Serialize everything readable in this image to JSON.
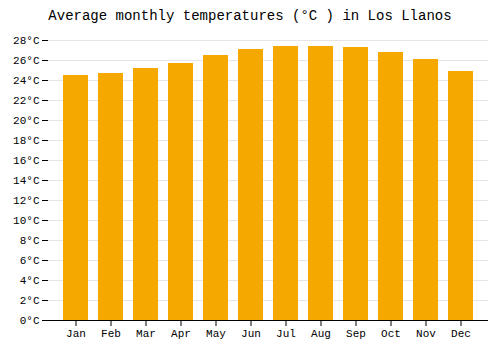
{
  "chart_data": {
    "type": "bar",
    "title": "Average monthly temperatures (°C ) in Los Llanos",
    "categories": [
      "Jan",
      "Feb",
      "Mar",
      "Apr",
      "May",
      "Jun",
      "Jul",
      "Aug",
      "Sep",
      "Oct",
      "Nov",
      "Dec"
    ],
    "values": [
      24.5,
      24.7,
      25.2,
      25.7,
      26.5,
      27.1,
      27.4,
      27.4,
      27.3,
      26.8,
      26.1,
      24.9
    ],
    "color": "#F5A800",
    "ylim": [
      0,
      28
    ],
    "yticks": [
      {
        "value": 0,
        "label": "0°C"
      },
      {
        "value": 2,
        "label": "2°C"
      },
      {
        "value": 4,
        "label": "4°C"
      },
      {
        "value": 6,
        "label": "6°C"
      },
      {
        "value": 8,
        "label": "8°C"
      },
      {
        "value": 10,
        "label": "10°C"
      },
      {
        "value": 12,
        "label": "12°C"
      },
      {
        "value": 14,
        "label": "14°C"
      },
      {
        "value": 16,
        "label": "16°C"
      },
      {
        "value": 18,
        "label": "18°C"
      },
      {
        "value": 20,
        "label": "20°C"
      },
      {
        "value": 22,
        "label": "22°C"
      },
      {
        "value": 24,
        "label": "24°C"
      },
      {
        "value": 26,
        "label": "26°C"
      },
      {
        "value": 28,
        "label": "28°C"
      }
    ],
    "grid": true
  }
}
